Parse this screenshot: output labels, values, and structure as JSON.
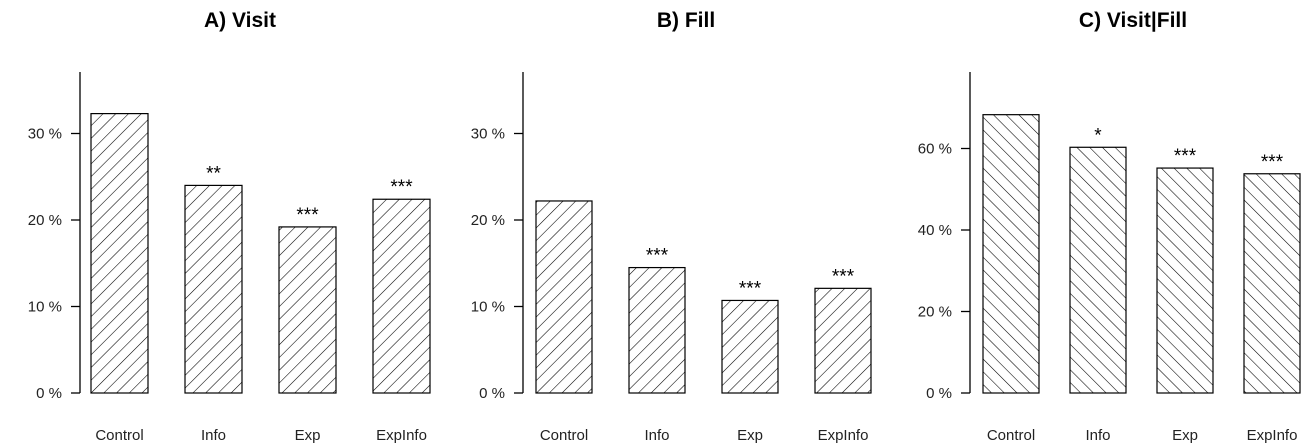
{
  "chart_data": [
    {
      "type": "bar",
      "title": "A) Visit",
      "categories": [
        "Control",
        "Info",
        "Exp",
        "ExpInfo"
      ],
      "values": [
        32.3,
        24.0,
        19.2,
        22.4
      ],
      "significance": [
        "",
        "**",
        "***",
        "***"
      ],
      "ylim": [
        0,
        35
      ],
      "yticks": [
        0,
        10,
        20,
        30
      ],
      "ytick_labels": [
        "0 %",
        "10 %",
        "20 %",
        "30 %"
      ],
      "hatch": "forward",
      "grid": false
    },
    {
      "type": "bar",
      "title": "B) Fill",
      "categories": [
        "Control",
        "Info",
        "Exp",
        "ExpInfo"
      ],
      "values": [
        22.2,
        14.5,
        10.7,
        12.1
      ],
      "significance": [
        "",
        "***",
        "***",
        "***"
      ],
      "ylim": [
        0,
        35
      ],
      "yticks": [
        0,
        10,
        20,
        30
      ],
      "ytick_labels": [
        "0 %",
        "10 %",
        "20 %",
        "30 %"
      ],
      "hatch": "forward",
      "grid": false
    },
    {
      "type": "bar",
      "title": "C) Visit|Fill",
      "categories": [
        "Control",
        "Info",
        "Exp",
        "ExpInfo"
      ],
      "values": [
        68.3,
        60.3,
        55.2,
        53.8
      ],
      "significance": [
        "",
        "*",
        "***",
        "***"
      ],
      "ylim": [
        0,
        78
      ],
      "yticks": [
        0,
        20,
        40,
        60
      ],
      "ytick_labels": [
        "0 %",
        "20 %",
        "40 %",
        "60 %"
      ],
      "hatch": "backward",
      "grid": false
    }
  ]
}
